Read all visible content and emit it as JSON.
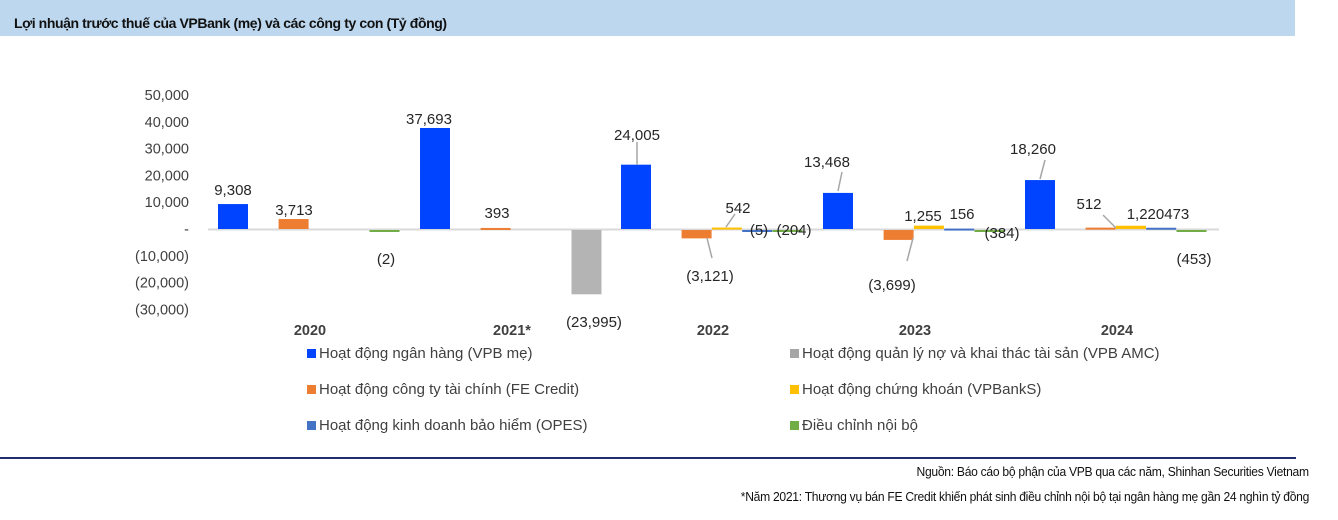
{
  "header": {
    "title": "Lợi nhuận trước thuế của VPBank (mẹ) và các công ty con (Tỷ đồng)"
  },
  "chart_data": {
    "type": "bar",
    "title": "Lợi nhuận trước thuế của VPBank (mẹ) và các công ty con (Tỷ đồng)",
    "xlabel": "",
    "ylabel": "",
    "ylim": [
      -30000,
      50000
    ],
    "y_ticks": [
      50000,
      40000,
      30000,
      20000,
      10000,
      0,
      -10000,
      -20000,
      -30000
    ],
    "y_tick_labels": [
      "50,000",
      "40,000",
      "30,000",
      "20,000",
      "10,000",
      "-",
      "(10,000)",
      "(20,000)",
      "(30,000)"
    ],
    "grid": false,
    "legend_position": "bottom",
    "categories": [
      "2020",
      "2021*",
      "2022",
      "2023",
      "2024"
    ],
    "series": [
      {
        "name": "Hoạt động ngân hàng (VPB mẹ)",
        "color": "#0044ff",
        "values": [
          9308,
          37693,
          24005,
          13468,
          18260
        ],
        "labels": [
          "9,308",
          "37,693",
          "24,005",
          "13,468",
          "18,260"
        ]
      },
      {
        "name": "Hoạt động quản lý nợ và khai thác tài sản (VPB AMC)",
        "color": "#a5a5a5",
        "values": [
          null,
          null,
          null,
          null,
          null
        ],
        "labels": [
          null,
          null,
          null,
          null,
          null
        ]
      },
      {
        "name": "Hoạt động công ty tài chính (FE Credit)",
        "color": "#ed7d31",
        "values": [
          3713,
          393,
          -3121,
          -3699,
          512
        ],
        "labels": [
          "3,713",
          "393",
          "(3,121)",
          "(3,699)",
          "512"
        ]
      },
      {
        "name": "Hoạt động chứng khoán (VPBankS)",
        "color": "#ffc000",
        "values": [
          null,
          null,
          542,
          1255,
          1220
        ],
        "labels": [
          null,
          null,
          "542",
          "1,255",
          "1,220"
        ]
      },
      {
        "name": "Hoạt động kinh doanh bảo hiểm (OPES)",
        "color": "#4472c4",
        "values": [
          null,
          null,
          -5,
          156,
          473
        ],
        "labels": [
          null,
          null,
          "(5)",
          "156",
          "473"
        ]
      },
      {
        "name": "Điều chỉnh nội bộ",
        "color": "#70ad47",
        "values": [
          -2,
          -23995,
          -204,
          -384,
          -453
        ],
        "labels": [
          "(2)",
          "(23,995)",
          "(204)",
          "(384)",
          "(453)"
        ],
        "point_colors": [
          null,
          "#b4b4b4",
          null,
          null,
          null
        ]
      }
    ]
  },
  "legend": {
    "items": [
      {
        "label": "Hoạt động ngân hàng (VPB mẹ)",
        "color": "#0044ff"
      },
      {
        "label": "Hoạt động quản lý nợ và khai thác tài sản (VPB AMC)",
        "color": "#a5a5a5"
      },
      {
        "label": "Hoạt động công ty tài chính (FE Credit)",
        "color": "#ed7d31"
      },
      {
        "label": "Hoạt động chứng khoán (VPBankS)",
        "color": "#ffc000"
      },
      {
        "label": "Hoạt động kinh doanh bảo hiểm (OPES)",
        "color": "#4472c4"
      },
      {
        "label": "Điều chỉnh nội bộ",
        "color": "#70ad47"
      }
    ]
  },
  "footer": {
    "source": "Nguồn: Báo cáo bộ phận của VPB qua các năm, Shinhan Securities Vietnam",
    "note": "*Năm 2021: Thương vụ bán FE Credit khiến phát sinh điều chỉnh nội bộ tại ngân hàng mẹ gần 24 nghìn tỷ đồng"
  }
}
